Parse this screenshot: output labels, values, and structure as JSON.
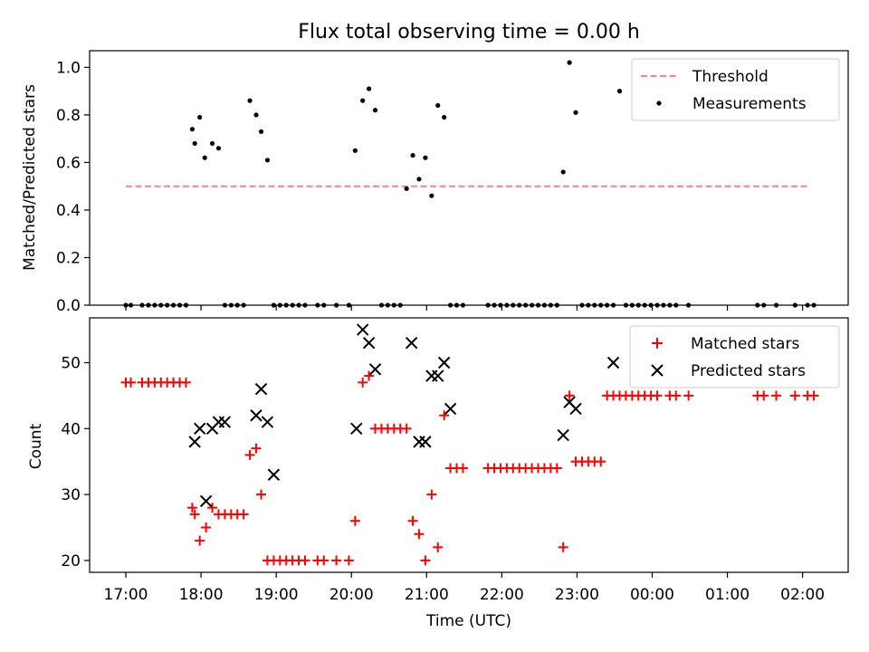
{
  "chart_data": [
    {
      "type": "scatter",
      "title": "Flux total observing time = 0.00 h",
      "xlabel": "",
      "ylabel": "Matched/Predicted stars",
      "ylim": [
        0,
        1.07
      ],
      "yticks": [
        0.0,
        0.2,
        0.4,
        0.6,
        0.8,
        1.0
      ],
      "ytick_labels": [
        "0.0",
        "0.2",
        "0.4",
        "0.6",
        "0.8",
        "1.0"
      ],
      "legend_loc": "upper right",
      "threshold": {
        "name": "Threshold",
        "y": 0.5,
        "x_start": "17:00",
        "x_end": "02:05",
        "color": "#ff8080"
      },
      "series": [
        {
          "name": "Measurements",
          "color": "#000000",
          "x": [
            "17:00",
            "17:04",
            "17:13",
            "17:18",
            "17:23",
            "17:28",
            "17:33",
            "17:38",
            "17:43",
            "17:48",
            "17:53",
            "17:55",
            "17:59",
            "18:03",
            "18:09",
            "18:14",
            "18:19",
            "18:24",
            "18:29",
            "18:34",
            "18:39",
            "18:44",
            "18:48",
            "18:53",
            "18:58",
            "19:03",
            "19:08",
            "19:13",
            "19:18",
            "19:23",
            "19:33",
            "19:38",
            "19:48",
            "19:58",
            "20:03",
            "20:09",
            "20:14",
            "20:19",
            "20:24",
            "20:29",
            "20:34",
            "20:39",
            "20:44",
            "20:49",
            "20:54",
            "20:59",
            "21:04",
            "21:09",
            "21:14",
            "21:19",
            "21:24",
            "21:29",
            "21:49",
            "21:54",
            "21:59",
            "22:04",
            "22:09",
            "22:14",
            "22:19",
            "22:24",
            "22:29",
            "22:34",
            "22:39",
            "22:44",
            "22:49",
            "22:54",
            "22:59",
            "23:04",
            "23:09",
            "23:14",
            "23:19",
            "23:24",
            "23:29",
            "23:34",
            "23:39",
            "23:44",
            "23:49",
            "23:54",
            "23:59",
            "00:04",
            "00:09",
            "00:14",
            "00:19",
            "00:29",
            "01:24",
            "01:29",
            "01:39",
            "01:54",
            "02:04",
            "02:09"
          ],
          "y": [
            0,
            0,
            0,
            0,
            0,
            0,
            0,
            0,
            0,
            0,
            0.74,
            0.68,
            0.79,
            0.62,
            0.68,
            0.66,
            0,
            0,
            0,
            0,
            0.86,
            0.8,
            0.73,
            0.61,
            0,
            0,
            0,
            0,
            0,
            0,
            0,
            0,
            0,
            0,
            0.65,
            0.86,
            0.91,
            0.82,
            0,
            0,
            0,
            0,
            0.49,
            0.63,
            0.53,
            0.62,
            0.46,
            0.84,
            0.79,
            0,
            0,
            0,
            0,
            0,
            0,
            0,
            0,
            0,
            0,
            0,
            0,
            0,
            0,
            0,
            0.56,
            1.02,
            0.81,
            0,
            0,
            0,
            0,
            0,
            0,
            0.9,
            0,
            0,
            0,
            0,
            0,
            0,
            0,
            0,
            0,
            0,
            0,
            0,
            0,
            0,
            0,
            0
          ]
        }
      ]
    },
    {
      "type": "scatter",
      "title": "",
      "xlabel": "Time (UTC)",
      "ylabel": "Count",
      "ylim": [
        18.2,
        56.8
      ],
      "yticks": [
        20,
        30,
        40,
        50
      ],
      "ytick_labels": [
        "20",
        "30",
        "40",
        "50"
      ],
      "x_tick_labels": [
        "17:00",
        "18:00",
        "19:00",
        "20:00",
        "21:00",
        "22:00",
        "23:00",
        "00:00",
        "01:00",
        "02:00"
      ],
      "legend_loc": "upper right",
      "series": [
        {
          "name": "Matched stars",
          "marker": "plus",
          "color": "#ff0000",
          "x": [
            "17:00",
            "17:04",
            "17:13",
            "17:18",
            "17:23",
            "17:28",
            "17:33",
            "17:38",
            "17:43",
            "17:48",
            "17:53",
            "17:55",
            "17:59",
            "18:04",
            "18:09",
            "18:14",
            "18:19",
            "18:24",
            "18:29",
            "18:34",
            "18:39",
            "18:44",
            "18:48",
            "18:53",
            "18:58",
            "19:03",
            "19:08",
            "19:13",
            "19:18",
            "19:23",
            "19:33",
            "19:38",
            "19:48",
            "19:58",
            "20:03",
            "20:09",
            "20:14",
            "20:19",
            "20:24",
            "20:29",
            "20:34",
            "20:39",
            "20:44",
            "20:49",
            "20:54",
            "20:59",
            "21:04",
            "21:09",
            "21:14",
            "21:19",
            "21:24",
            "21:29",
            "21:49",
            "21:54",
            "21:59",
            "22:04",
            "22:09",
            "22:14",
            "22:19",
            "22:24",
            "22:29",
            "22:34",
            "22:39",
            "22:44",
            "22:49",
            "22:54",
            "22:59",
            "23:04",
            "23:09",
            "23:14",
            "23:19",
            "23:24",
            "23:29",
            "23:34",
            "23:39",
            "23:44",
            "23:49",
            "23:54",
            "23:59",
            "00:04",
            "00:14",
            "00:19",
            "00:29",
            "01:24",
            "01:29",
            "01:39",
            "01:54",
            "02:04",
            "02:09"
          ],
          "y": [
            47,
            47,
            47,
            47,
            47,
            47,
            47,
            47,
            47,
            47,
            28,
            27,
            23,
            25,
            28,
            27,
            27,
            27,
            27,
            27,
            36,
            37,
            30,
            20,
            20,
            20,
            20,
            20,
            20,
            20,
            20,
            20,
            20,
            20,
            26,
            47,
            48,
            40,
            40,
            40,
            40,
            40,
            40,
            26,
            24,
            20,
            30,
            22,
            42,
            34,
            34,
            34,
            34,
            34,
            34,
            34,
            34,
            34,
            34,
            34,
            34,
            34,
            34,
            34,
            22,
            45,
            35,
            35,
            35,
            35,
            35,
            45,
            45,
            45,
            45,
            45,
            45,
            45,
            45,
            45,
            45,
            45,
            45,
            45,
            45,
            45,
            45,
            45,
            45
          ]
        },
        {
          "name": "Predicted stars",
          "marker": "x",
          "color": "#000000",
          "x": [
            "17:55",
            "17:59",
            "18:04",
            "18:09",
            "18:14",
            "18:19",
            "18:44",
            "18:48",
            "18:53",
            "18:58",
            "20:04",
            "20:09",
            "20:14",
            "20:19",
            "20:48",
            "20:54",
            "20:59",
            "21:04",
            "21:09",
            "21:14",
            "21:19",
            "22:49",
            "22:54",
            "22:59",
            "23:29"
          ],
          "y": [
            38,
            40,
            29,
            40,
            41,
            41,
            42,
            46,
            41,
            33,
            40,
            55,
            53,
            49,
            53,
            38,
            38,
            48,
            48,
            50,
            43,
            39,
            44,
            43,
            50
          ]
        }
      ]
    }
  ]
}
